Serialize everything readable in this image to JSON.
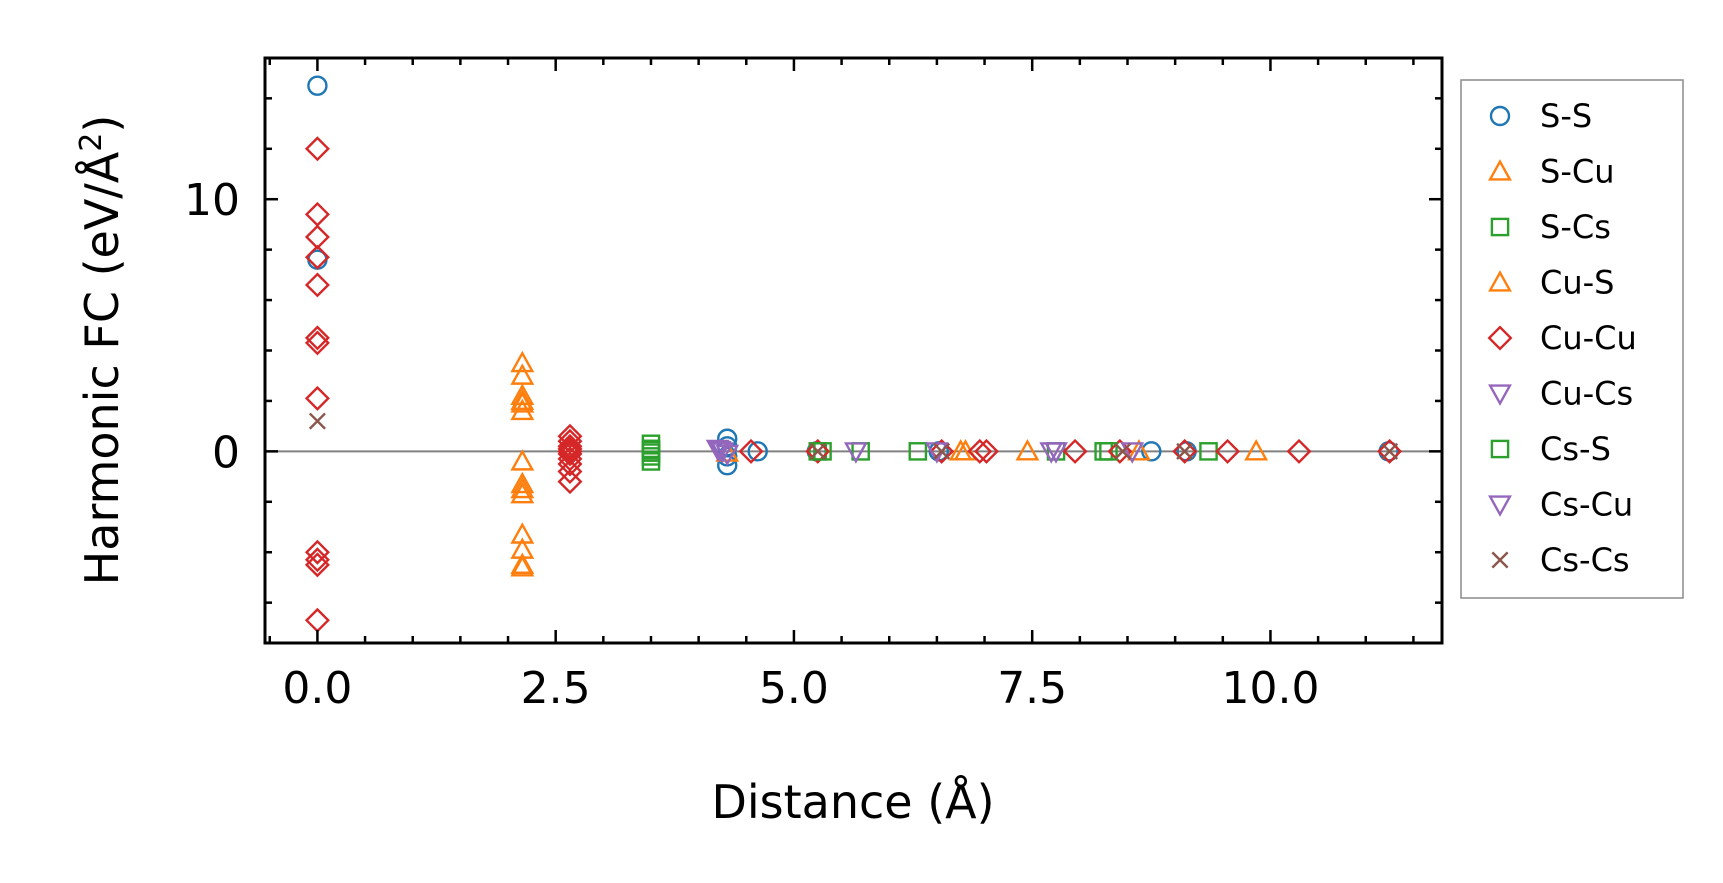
{
  "chart_data": {
    "type": "scatter",
    "title": "",
    "xlabel": "Distance (Å)",
    "ylabel_prefix": "Harmonic FC (eV/Å",
    "ylabel_sup": "2",
    "ylabel_suffix": ")",
    "xlim": [
      -0.55,
      11.8
    ],
    "ylim": [
      -7.6,
      15.6
    ],
    "xticks": [
      0.0,
      2.5,
      5.0,
      7.5,
      10.0
    ],
    "xtick_labels": [
      "0.0",
      "2.5",
      "5.0",
      "7.5",
      "10.0"
    ],
    "yticks": [
      0,
      10
    ],
    "ytick_labels": [
      "0",
      "10"
    ],
    "x_minor_step": 0.5,
    "y_minor_step": 2,
    "zero_line": 0,
    "legend_position": "outside-right",
    "series": [
      {
        "name": "S-S",
        "marker": "circle",
        "color": "#1f77b4",
        "x": [
          0.0,
          0.0,
          4.3,
          4.3,
          4.3,
          4.3,
          4.62,
          5.24,
          6.52,
          8.75,
          9.12,
          11.24
        ],
        "y": [
          14.5,
          7.6,
          0.5,
          0.2,
          -0.2,
          -0.55,
          0.0,
          0.0,
          0.0,
          0.0,
          0.0,
          0.0
        ]
      },
      {
        "name": "S-Cu",
        "marker": "triangle-up",
        "color": "#ff7f0e",
        "x": [
          2.15,
          2.15,
          2.15,
          2.15,
          2.15,
          2.15,
          2.15,
          2.15,
          2.15,
          2.15,
          2.15,
          4.3,
          6.8,
          7.45,
          8.62,
          9.85
        ],
        "y": [
          3.5,
          3.0,
          2.2,
          1.9,
          1.6,
          -0.4,
          -1.3,
          -1.7,
          -3.3,
          -3.9,
          -4.5,
          -0.05,
          0.0,
          0.0,
          0.0,
          0.0
        ]
      },
      {
        "name": "S-Cs",
        "marker": "square",
        "color": "#2ca02c",
        "x": [
          3.5,
          3.5,
          3.5,
          3.5,
          5.25,
          5.7,
          6.3,
          7.75,
          8.25,
          9.35
        ],
        "y": [
          0.3,
          0.1,
          -0.2,
          -0.4,
          0.0,
          0.0,
          0.0,
          0.0,
          0.0,
          0.0
        ]
      },
      {
        "name": "Cu-S",
        "marker": "triangle-up",
        "color": "#ff7f0e",
        "x": [
          2.15,
          2.15,
          2.15,
          6.75
        ],
        "y": [
          2.0,
          -1.5,
          -4.6,
          0.0
        ]
      },
      {
        "name": "Cu-Cu",
        "marker": "diamond",
        "color": "#d62728",
        "x": [
          0.0,
          0.0,
          0.0,
          0.0,
          0.0,
          0.0,
          0.0,
          0.0,
          0.0,
          0.0,
          0.0,
          0.0,
          2.65,
          2.65,
          2.65,
          2.65,
          2.65,
          2.65,
          2.65,
          2.65,
          2.65,
          2.65,
          4.55,
          5.25,
          6.55,
          6.95,
          7.02,
          7.95,
          8.42,
          9.1,
          9.55,
          10.3,
          11.25
        ],
        "y": [
          12.0,
          9.4,
          8.5,
          7.7,
          6.6,
          4.5,
          4.3,
          2.1,
          -4.0,
          -4.3,
          -4.5,
          -6.7,
          0.6,
          0.4,
          0.2,
          0.1,
          0.0,
          -0.1,
          -0.3,
          -0.5,
          -0.8,
          -1.2,
          0.0,
          0.0,
          0.0,
          0.0,
          0.0,
          0.0,
          0.0,
          0.0,
          0.0,
          0.0,
          0.0
        ]
      },
      {
        "name": "Cu-Cs",
        "marker": "triangle-down",
        "color": "#9467bd",
        "x": [
          4.2,
          4.25,
          4.3,
          5.65,
          7.75,
          8.55
        ],
        "y": [
          0.1,
          0.0,
          -0.1,
          0.0,
          0.0,
          0.0
        ]
      },
      {
        "name": "Cs-S",
        "marker": "square",
        "color": "#2ca02c",
        "x": [
          3.5,
          3.5,
          5.3,
          8.3
        ],
        "y": [
          0.05,
          -0.05,
          0.0,
          0.0
        ]
      },
      {
        "name": "Cs-Cu",
        "marker": "triangle-down",
        "color": "#9467bd",
        "x": [
          4.22,
          6.5,
          7.7
        ],
        "y": [
          0.05,
          0.0,
          0.0
        ]
      },
      {
        "name": "Cs-Cs",
        "marker": "x",
        "color": "#8c564b",
        "x": [
          0.0,
          5.25,
          6.55,
          8.45,
          9.1,
          11.25
        ],
        "y": [
          1.2,
          0.0,
          0.0,
          0.0,
          0.0,
          0.0
        ]
      }
    ]
  }
}
